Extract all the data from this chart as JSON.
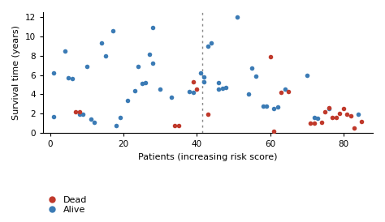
{
  "title": "",
  "xlabel": "Patients (increasing risk score)",
  "ylabel": "Survival time (years)",
  "xlim": [
    -2,
    88
  ],
  "ylim": [
    0,
    12.5
  ],
  "xticks": [
    0,
    20,
    40,
    60,
    80
  ],
  "yticks": [
    0,
    2,
    4,
    6,
    8,
    10,
    12
  ],
  "vline_x": 41.5,
  "dead_color": "#c0392b",
  "alive_color": "#3b7bb5",
  "background_color": "#ffffff",
  "alive_points": [
    [
      1,
      6.2
    ],
    [
      1,
      1.7
    ],
    [
      4,
      8.5
    ],
    [
      5,
      5.7
    ],
    [
      6,
      5.6
    ],
    [
      8,
      1.9
    ],
    [
      9,
      1.9
    ],
    [
      10,
      6.9
    ],
    [
      11,
      1.4
    ],
    [
      12,
      1.1
    ],
    [
      14,
      9.3
    ],
    [
      15,
      8.0
    ],
    [
      17,
      10.6
    ],
    [
      18,
      0.8
    ],
    [
      19,
      1.6
    ],
    [
      21,
      3.4
    ],
    [
      23,
      4.4
    ],
    [
      24,
      6.9
    ],
    [
      25,
      5.1
    ],
    [
      26,
      5.2
    ],
    [
      27,
      8.1
    ],
    [
      28,
      7.2
    ],
    [
      28,
      10.9
    ],
    [
      30,
      4.5
    ],
    [
      33,
      3.7
    ],
    [
      38,
      4.3
    ],
    [
      39,
      4.2
    ],
    [
      41,
      6.2
    ],
    [
      42,
      5.8
    ],
    [
      42,
      5.3
    ],
    [
      43,
      9.0
    ],
    [
      44,
      9.3
    ],
    [
      46,
      5.2
    ],
    [
      46,
      4.5
    ],
    [
      47,
      4.6
    ],
    [
      48,
      4.7
    ],
    [
      51,
      12.0
    ],
    [
      54,
      4.0
    ],
    [
      55,
      6.7
    ],
    [
      56,
      5.9
    ],
    [
      58,
      2.8
    ],
    [
      59,
      2.8
    ],
    [
      61,
      2.5
    ],
    [
      62,
      2.7
    ],
    [
      64,
      4.5
    ],
    [
      70,
      6.0
    ],
    [
      72,
      1.6
    ],
    [
      73,
      1.5
    ],
    [
      76,
      2.5
    ],
    [
      84,
      1.9
    ]
  ],
  "dead_points": [
    [
      7,
      2.2
    ],
    [
      8,
      2.2
    ],
    [
      34,
      0.75
    ],
    [
      35,
      0.75
    ],
    [
      39,
      5.3
    ],
    [
      40,
      4.5
    ],
    [
      43,
      1.9
    ],
    [
      60,
      7.9
    ],
    [
      61,
      0.2
    ],
    [
      63,
      4.2
    ],
    [
      65,
      4.3
    ],
    [
      71,
      1.0
    ],
    [
      72,
      1.0
    ],
    [
      74,
      1.1
    ],
    [
      75,
      2.2
    ],
    [
      76,
      2.6
    ],
    [
      77,
      1.6
    ],
    [
      78,
      1.6
    ],
    [
      79,
      2.0
    ],
    [
      80,
      2.5
    ],
    [
      81,
      1.9
    ],
    [
      82,
      1.8
    ],
    [
      83,
      0.5
    ],
    [
      85,
      1.2
    ]
  ],
  "figsize": [
    4.74,
    2.74
  ],
  "dpi": 100,
  "marker_size": 16,
  "legend_fontsize": 8,
  "axis_label_fontsize": 8,
  "tick_fontsize": 7.5
}
